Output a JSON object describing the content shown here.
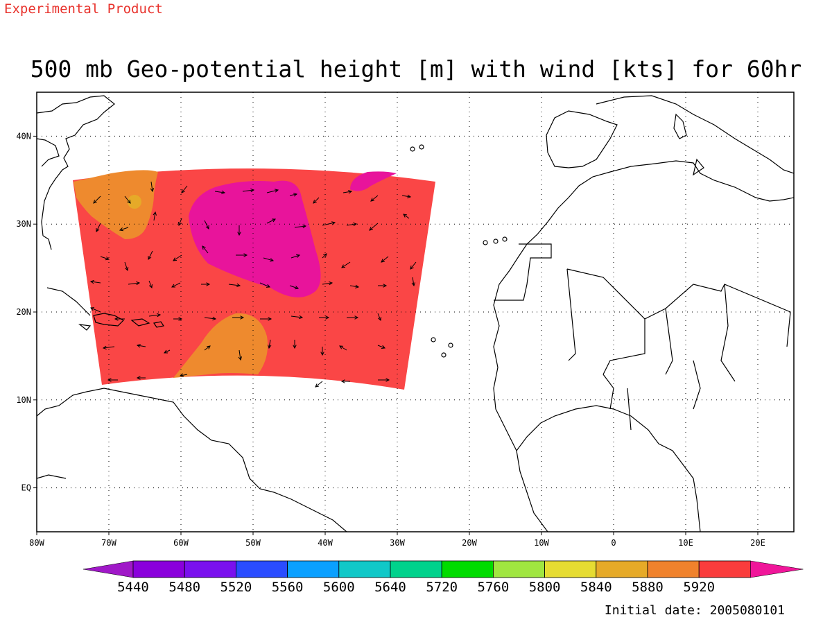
{
  "watermark": "Experimental Product",
  "title": "500 mb Geo-potential height [m] with wind [kts] for 60hr",
  "initial_date": "Initial date: 2005080101",
  "chart_data": {
    "type": "map",
    "variable": "500 mb geopotential height (m) with wind vectors (kts)",
    "lon_ticks": [
      "80W",
      "70W",
      "60W",
      "50W",
      "40W",
      "30W",
      "20W",
      "10W",
      "0",
      "10E",
      "20E"
    ],
    "lat_ticks": [
      "40N",
      "30N",
      "20N",
      "10N",
      "EQ"
    ],
    "lon_range": [
      -80,
      25
    ],
    "lat_range": [
      -5,
      45
    ],
    "grid": true,
    "colorbar": {
      "levels": [
        "5440",
        "5480",
        "5520",
        "5560",
        "5600",
        "5640",
        "5720",
        "5760",
        "5800",
        "5840",
        "5880",
        "5920"
      ],
      "colors": [
        "#8a00dc",
        "#7a10ee",
        "#2a4cff",
        "#0aa0ff",
        "#10c8c8",
        "#00d28c",
        "#00dc00",
        "#a0e640",
        "#e6dc32",
        "#e6aa28",
        "#f0822c",
        "#fa3c3c"
      ],
      "under_color": "#a018c8",
      "over_color": "#f0169a"
    },
    "domain_fill_color": "#fa4646",
    "high_region_color": "#e8149b",
    "low_region_color": "#ee8a2e",
    "inner_low_color": "#e6aa28"
  }
}
